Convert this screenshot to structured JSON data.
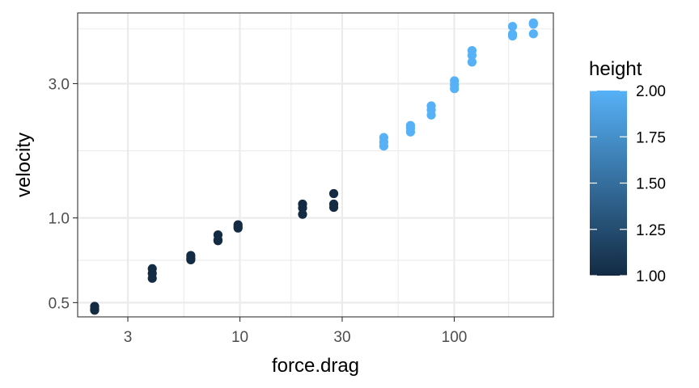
{
  "chart_data": {
    "type": "scatter",
    "title": "",
    "xlabel": "force.drag",
    "ylabel": "velocity",
    "x_scale": "log",
    "y_scale": "log",
    "xlim": [
      1.75,
      290
    ],
    "ylim": [
      0.445,
      5.35
    ],
    "x_ticks": [
      {
        "value": 3,
        "label": "3"
      },
      {
        "value": 10,
        "label": "10"
      },
      {
        "value": 30,
        "label": "30"
      },
      {
        "value": 100,
        "label": "100"
      }
    ],
    "y_ticks": [
      {
        "value": 0.5,
        "label": "0.5"
      },
      {
        "value": 1.0,
        "label": "1.0"
      },
      {
        "value": 3.0,
        "label": "3.0"
      }
    ],
    "grid": true,
    "legend": {
      "title": "height",
      "placement": "right",
      "type": "colorbar",
      "range": [
        1.0,
        2.0
      ],
      "ticks": [
        {
          "value": 2.0,
          "label": "2.00"
        },
        {
          "value": 1.75,
          "label": "1.75"
        },
        {
          "value": 1.5,
          "label": "1.50"
        },
        {
          "value": 1.25,
          "label": "1.25"
        },
        {
          "value": 1.0,
          "label": "1.00"
        }
      ],
      "color_low": "#132B43",
      "color_high": "#56B1F7"
    },
    "series": [
      {
        "color_value": 1.0,
        "points": [
          {
            "x": 2.1,
            "y": 0.485
          },
          {
            "x": 2.1,
            "y": 0.475
          },
          {
            "x": 2.1,
            "y": 0.47
          },
          {
            "x": 3.9,
            "y": 0.66
          },
          {
            "x": 3.9,
            "y": 0.635
          },
          {
            "x": 3.9,
            "y": 0.61
          },
          {
            "x": 5.9,
            "y": 0.735
          },
          {
            "x": 5.9,
            "y": 0.72
          },
          {
            "x": 5.9,
            "y": 0.71
          },
          {
            "x": 7.9,
            "y": 0.87
          },
          {
            "x": 7.9,
            "y": 0.835
          },
          {
            "x": 7.9,
            "y": 0.83
          },
          {
            "x": 9.8,
            "y": 0.945
          },
          {
            "x": 9.8,
            "y": 0.93
          },
          {
            "x": 9.8,
            "y": 0.92
          },
          {
            "x": 19.6,
            "y": 1.12
          },
          {
            "x": 19.6,
            "y": 1.085
          },
          {
            "x": 19.6,
            "y": 1.03
          },
          {
            "x": 27.4,
            "y": 1.22
          },
          {
            "x": 27.4,
            "y": 1.12
          },
          {
            "x": 27.4,
            "y": 1.09
          }
        ]
      },
      {
        "color_value": 2.0,
        "points": [
          {
            "x": 46.9,
            "y": 1.93
          },
          {
            "x": 46.9,
            "y": 1.86
          },
          {
            "x": 46.9,
            "y": 1.8
          },
          {
            "x": 62.5,
            "y": 2.13
          },
          {
            "x": 62.5,
            "y": 2.08
          },
          {
            "x": 62.5,
            "y": 2.02
          },
          {
            "x": 78.1,
            "y": 2.5
          },
          {
            "x": 78.1,
            "y": 2.42
          },
          {
            "x": 78.1,
            "y": 2.32
          },
          {
            "x": 100.2,
            "y": 3.07
          },
          {
            "x": 100.2,
            "y": 2.97
          },
          {
            "x": 100.2,
            "y": 2.88
          },
          {
            "x": 121.0,
            "y": 3.93
          },
          {
            "x": 121.0,
            "y": 3.78
          },
          {
            "x": 121.0,
            "y": 3.58
          },
          {
            "x": 187.0,
            "y": 4.79
          },
          {
            "x": 187.0,
            "y": 4.5
          },
          {
            "x": 187.0,
            "y": 4.43
          },
          {
            "x": 234.0,
            "y": 4.93
          },
          {
            "x": 234.0,
            "y": 4.88
          },
          {
            "x": 234.0,
            "y": 4.51
          }
        ]
      }
    ]
  }
}
